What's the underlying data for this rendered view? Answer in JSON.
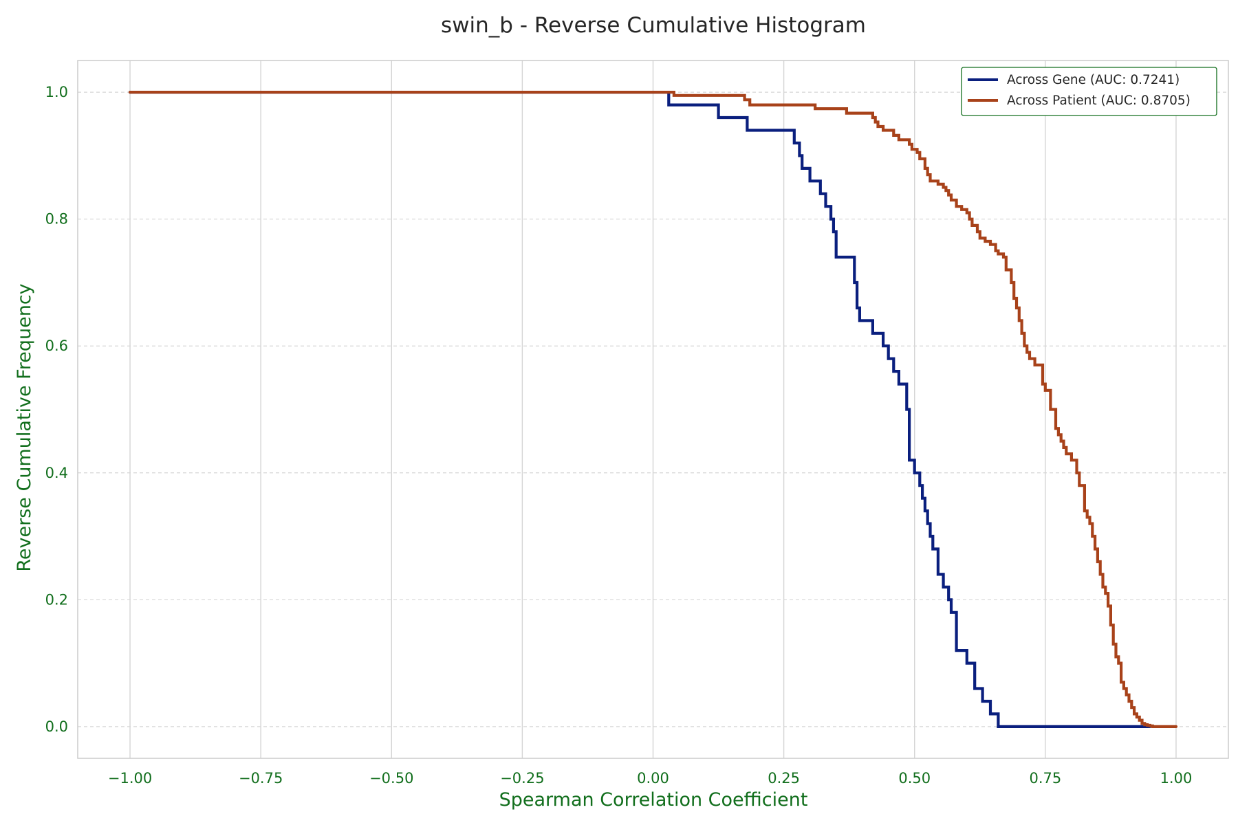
{
  "chart_data": {
    "type": "line",
    "step": "post",
    "title": "swin_b - Reverse Cumulative Histogram",
    "xlabel": "Spearman Correlation Coefficient",
    "ylabel": "Reverse Cumulative Frequency",
    "xlim": [
      -1.1,
      1.1
    ],
    "ylim": [
      -0.05,
      1.05
    ],
    "xticks": [
      -1.0,
      -0.75,
      -0.5,
      -0.25,
      0.0,
      0.25,
      0.5,
      0.75,
      1.0
    ],
    "xtick_labels": [
      "−1.00",
      "−0.75",
      "−0.50",
      "−0.25",
      "0.00",
      "0.25",
      "0.50",
      "0.75",
      "1.00"
    ],
    "yticks": [
      0.0,
      0.2,
      0.4,
      0.6,
      0.8,
      1.0
    ],
    "ytick_labels": [
      "0.0",
      "0.2",
      "0.4",
      "0.6",
      "0.8",
      "1.0"
    ],
    "grid": {
      "x": "solid",
      "y": "dashed"
    },
    "legend_position": "top-right",
    "colors": {
      "axis_text": "#116e1c",
      "title": "#262626",
      "legend_border": "#116e1c",
      "grid": "#d0d0d0",
      "frame": "#cccccc"
    },
    "series": [
      {
        "name": "Across Gene (AUC: 0.7241)",
        "color": "#0a1f7e",
        "x": [
          -1.0,
          0.03,
          0.125,
          0.18,
          0.27,
          0.28,
          0.285,
          0.29,
          0.3,
          0.32,
          0.33,
          0.34,
          0.345,
          0.35,
          0.355,
          0.36,
          0.385,
          0.39,
          0.395,
          0.4,
          0.42,
          0.44,
          0.45,
          0.46,
          0.47,
          0.485,
          0.49,
          0.5,
          0.51,
          0.515,
          0.52,
          0.525,
          0.53,
          0.535,
          0.545,
          0.555,
          0.565,
          0.57,
          0.58,
          0.6,
          0.615,
          0.63,
          0.645,
          0.655,
          0.66,
          0.66,
          0.95
        ],
        "y": [
          1.0,
          0.98,
          0.96,
          0.94,
          0.92,
          0.9,
          0.88,
          0.88,
          0.86,
          0.84,
          0.82,
          0.8,
          0.78,
          0.74,
          0.74,
          0.74,
          0.7,
          0.66,
          0.64,
          0.64,
          0.62,
          0.6,
          0.58,
          0.56,
          0.54,
          0.5,
          0.42,
          0.4,
          0.38,
          0.36,
          0.34,
          0.32,
          0.3,
          0.28,
          0.24,
          0.22,
          0.2,
          0.18,
          0.12,
          0.1,
          0.06,
          0.04,
          0.02,
          0.02,
          0.0,
          0.0,
          0.0
        ]
      },
      {
        "name": "Across Patient (AUC: 0.8705)",
        "color": "#a8421a",
        "x": [
          -1.0,
          0.04,
          0.175,
          0.185,
          0.31,
          0.37,
          0.42,
          0.425,
          0.43,
          0.44,
          0.46,
          0.47,
          0.49,
          0.495,
          0.505,
          0.51,
          0.52,
          0.525,
          0.53,
          0.545,
          0.555,
          0.56,
          0.565,
          0.57,
          0.58,
          0.59,
          0.6,
          0.605,
          0.61,
          0.62,
          0.625,
          0.635,
          0.645,
          0.655,
          0.66,
          0.67,
          0.675,
          0.685,
          0.69,
          0.695,
          0.7,
          0.705,
          0.71,
          0.715,
          0.72,
          0.73,
          0.745,
          0.75,
          0.76,
          0.77,
          0.775,
          0.78,
          0.785,
          0.79,
          0.795,
          0.8,
          0.81,
          0.815,
          0.825,
          0.83,
          0.835,
          0.84,
          0.845,
          0.85,
          0.855,
          0.86,
          0.865,
          0.87,
          0.875,
          0.88,
          0.885,
          0.89,
          0.895,
          0.9,
          0.905,
          0.91,
          0.915,
          0.92,
          0.925,
          0.93,
          0.935,
          0.94,
          0.945,
          0.95,
          0.955,
          1.0
        ],
        "y": [
          1.0,
          0.995,
          0.988,
          0.98,
          0.974,
          0.967,
          0.96,
          0.953,
          0.946,
          0.94,
          0.932,
          0.925,
          0.918,
          0.91,
          0.905,
          0.895,
          0.88,
          0.87,
          0.86,
          0.855,
          0.85,
          0.845,
          0.838,
          0.83,
          0.82,
          0.815,
          0.81,
          0.8,
          0.79,
          0.78,
          0.77,
          0.765,
          0.76,
          0.75,
          0.745,
          0.74,
          0.72,
          0.7,
          0.675,
          0.66,
          0.64,
          0.62,
          0.6,
          0.59,
          0.58,
          0.57,
          0.54,
          0.53,
          0.5,
          0.47,
          0.46,
          0.45,
          0.44,
          0.43,
          0.43,
          0.42,
          0.4,
          0.38,
          0.34,
          0.33,
          0.32,
          0.3,
          0.28,
          0.26,
          0.24,
          0.22,
          0.21,
          0.19,
          0.16,
          0.13,
          0.11,
          0.1,
          0.07,
          0.06,
          0.05,
          0.04,
          0.03,
          0.02,
          0.015,
          0.01,
          0.005,
          0.003,
          0.002,
          0.001,
          0.0,
          0.0
        ]
      }
    ]
  }
}
